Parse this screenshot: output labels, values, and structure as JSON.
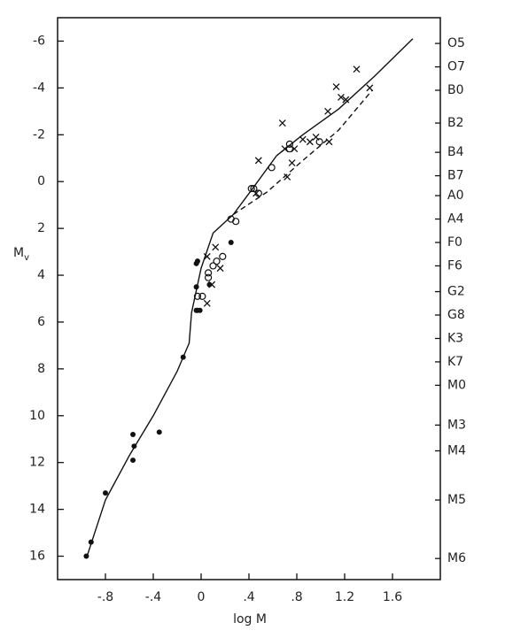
{
  "chart_data": {
    "type": "scatter",
    "xlabel": "log M",
    "ylabel": "M",
    "ylabel_subscript": "v",
    "xlim": [
      -1.2,
      2.0
    ],
    "xticks": [
      {
        "value": -0.8,
        "label": "-.8"
      },
      {
        "value": -0.4,
        "label": "-.4"
      },
      0,
      {
        "value": 0.4,
        "label": ".4"
      },
      {
        "value": 0.8,
        "label": ".8"
      },
      1.2,
      1.6
    ],
    "ylim": [
      17,
      -7
    ],
    "yticks": [
      -6,
      -4,
      -2,
      0,
      2,
      4,
      6,
      8,
      10,
      12,
      14,
      16
    ],
    "y2lim": [
      17,
      -7
    ],
    "y2ticks": [
      {
        "value": -5.9,
        "label": "O5"
      },
      {
        "value": -4.9,
        "label": "O7"
      },
      {
        "value": -3.9,
        "label": "B0"
      },
      {
        "value": -2.5,
        "label": "B2"
      },
      {
        "value": -1.25,
        "label": "B4"
      },
      {
        "value": -0.25,
        "label": "B7"
      },
      {
        "value": 0.6,
        "label": "A0"
      },
      {
        "value": 1.6,
        "label": "A4"
      },
      {
        "value": 2.6,
        "label": "F0"
      },
      {
        "value": 3.6,
        "label": "F6"
      },
      {
        "value": 4.7,
        "label": "G2"
      },
      {
        "value": 5.7,
        "label": "G8"
      },
      {
        "value": 6.7,
        "label": "K3"
      },
      {
        "value": 7.7,
        "label": "K7"
      },
      {
        "value": 8.7,
        "label": "M0"
      },
      {
        "value": 10.4,
        "label": "M3"
      },
      {
        "value": 11.5,
        "label": "M4"
      },
      {
        "value": 13.6,
        "label": "M5"
      },
      {
        "value": 16.1,
        "label": "M6"
      }
    ],
    "color": "#111",
    "series": [
      {
        "marker": "dot",
        "x": [
          -0.96,
          -0.92,
          -0.8,
          -0.57,
          -0.56,
          -0.57,
          -0.35,
          -0.15,
          -0.04,
          -0.03,
          -0.01,
          -0.04,
          -0.04,
          -0.03,
          0.07,
          0.25
        ],
        "values": [
          16.0,
          15.4,
          13.3,
          10.8,
          11.3,
          11.9,
          10.7,
          7.5,
          5.5,
          5.5,
          5.5,
          4.5,
          3.5,
          3.4,
          4.4,
          2.6
        ]
      },
      {
        "marker": "circle",
        "x": [
          -0.03,
          0.01,
          0.06,
          0.06,
          0.1,
          0.13,
          0.18,
          0.25,
          0.29,
          0.42,
          0.44,
          0.48,
          0.59,
          0.74,
          0.74,
          0.99
        ],
        "values": [
          4.9,
          4.9,
          3.9,
          4.1,
          3.6,
          3.4,
          3.2,
          1.6,
          1.7,
          0.3,
          0.3,
          0.5,
          -0.6,
          -1.6,
          -1.4,
          -1.7
        ]
      },
      {
        "marker": "cross",
        "x": [
          0.05,
          0.05,
          0.09,
          0.12,
          0.16,
          0.46,
          0.48,
          0.68,
          0.7,
          0.72,
          0.76,
          0.78,
          0.85,
          0.91,
          0.96,
          1.06,
          1.07,
          1.13,
          1.17,
          1.21,
          1.3,
          1.41
        ],
        "values": [
          3.2,
          5.2,
          4.4,
          2.8,
          3.7,
          0.5,
          -0.9,
          -2.5,
          -1.4,
          -0.2,
          -0.8,
          -1.4,
          -1.8,
          -1.7,
          -1.9,
          -3.0,
          -1.7,
          -4.05,
          -3.6,
          -3.5,
          -4.8,
          -4.0
        ]
      },
      {
        "marker": "solid-line",
        "x": [
          -0.96,
          -0.8,
          -0.6,
          -0.4,
          -0.2,
          -0.1,
          -0.08,
          0,
          0.1,
          0.27,
          0.43,
          0.63,
          0.85,
          1.15,
          1.45,
          1.77
        ],
        "values": [
          16.1,
          13.6,
          11.7,
          10.0,
          8.1,
          6.9,
          5.6,
          3.7,
          2.2,
          1.4,
          0.3,
          -1.1,
          -2.0,
          -3.1,
          -4.5,
          -6.1
        ]
      },
      {
        "marker": "dashed-line",
        "x": [
          0.27,
          0.55,
          0.85,
          1.15,
          1.43
        ],
        "values": [
          1.4,
          0.45,
          -0.9,
          -2.2,
          -3.9
        ]
      }
    ]
  }
}
